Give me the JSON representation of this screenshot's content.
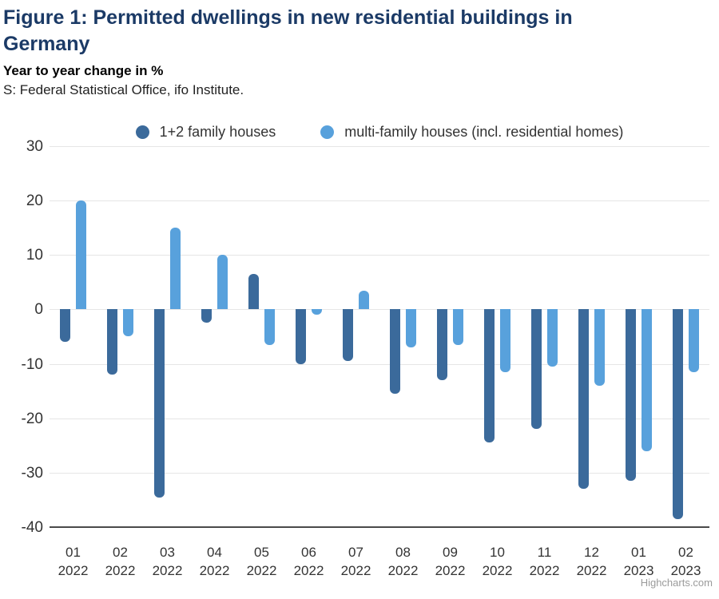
{
  "header": {
    "title": "Figure 1: Permitted dwellings in new residential buildings in Germany",
    "subtitle": "Year to year change in %",
    "source": "S: Federal Statistical Office, ifo Institute."
  },
  "credit": "Highcharts.com",
  "colors": {
    "title": "#1B3A66",
    "series1": "#3B6A9B",
    "series2": "#58A1DC",
    "grid": "#E6E6E6",
    "axis_line": "#4A4A4A",
    "tick_text": "#333333",
    "credit_text": "#9B9B9B"
  },
  "chart_data": {
    "type": "bar",
    "title": "Figure 1: Permitted dwellings in new residential buildings in Germany",
    "subtitle": "Year to year change in %",
    "ylabel": "Year to year change in %",
    "xlabel": "",
    "categories": [
      "01 2022",
      "02 2022",
      "03 2022",
      "04 2022",
      "05 2022",
      "06 2022",
      "07 2022",
      "08 2022",
      "09 2022",
      "10 2022",
      "11 2022",
      "12 2022",
      "01 2023",
      "02 2023"
    ],
    "series": [
      {
        "name": "1+2 family houses",
        "color": "#3B6A9B",
        "values": [
          -6,
          -12,
          -34.5,
          -2.5,
          6.5,
          -10,
          -9.5,
          -15.5,
          -13,
          -24.5,
          -22,
          -33,
          -31.5,
          -38.5
        ]
      },
      {
        "name": "multi-family houses (incl. residential homes)",
        "color": "#58A1DC",
        "values": [
          20,
          -5,
          15,
          10,
          -6.5,
          -1,
          3.5,
          -7,
          -6.5,
          -11.5,
          -10.5,
          -14,
          -26,
          -11.5
        ]
      }
    ],
    "ylim": [
      -40,
      30
    ],
    "yticks": [
      30,
      20,
      10,
      0,
      -10,
      -20,
      -30,
      -40
    ],
    "grid": true,
    "legend_position": "top"
  }
}
